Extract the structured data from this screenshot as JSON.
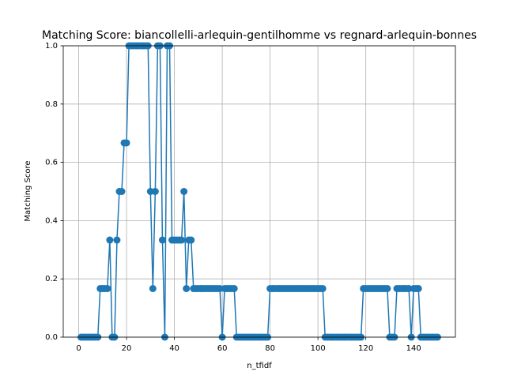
{
  "chart_data": {
    "type": "line",
    "title": "Matching Score: biancollelli-arlequin-gentilhomme vs regnard-arlequin-bonnes",
    "x_label": "n_tfidf",
    "y_label": "Matching Score",
    "x": [
      1,
      2,
      3,
      4,
      5,
      6,
      7,
      8,
      9,
      10,
      11,
      12,
      13,
      14,
      15,
      16,
      17,
      18,
      19,
      20,
      21,
      22,
      23,
      24,
      25,
      26,
      27,
      28,
      29,
      30,
      31,
      32,
      33,
      34,
      35,
      36,
      37,
      38,
      39,
      40,
      41,
      42,
      43,
      44,
      45,
      46,
      47,
      48,
      49,
      50,
      51,
      52,
      53,
      54,
      55,
      56,
      57,
      58,
      59,
      60,
      61,
      62,
      63,
      64,
      65,
      66,
      67,
      68,
      69,
      70,
      71,
      72,
      73,
      74,
      75,
      76,
      77,
      78,
      79,
      80,
      81,
      82,
      83,
      84,
      85,
      86,
      87,
      88,
      89,
      90,
      91,
      92,
      93,
      94,
      95,
      96,
      97,
      98,
      99,
      100,
      101,
      102,
      103,
      104,
      105,
      106,
      107,
      108,
      109,
      110,
      111,
      112,
      113,
      114,
      115,
      116,
      117,
      118,
      119,
      120,
      121,
      122,
      123,
      124,
      125,
      126,
      127,
      128,
      129,
      130,
      131,
      132,
      133,
      134,
      135,
      136,
      137,
      138,
      139,
      140,
      141,
      142,
      143,
      144,
      145,
      146,
      147,
      148,
      149,
      150
    ],
    "series": [
      {
        "color": "#1f77b4",
        "values": [
          0,
          0,
          0,
          0,
          0,
          0,
          0,
          0,
          0.1667,
          0.1667,
          0.1667,
          0.1667,
          0.3333,
          0,
          0,
          0.3333,
          0.5,
          0.5,
          0.6667,
          0.6667,
          1,
          1,
          1,
          1,
          1,
          1,
          1,
          1,
          1,
          0.5,
          0.1667,
          0.5,
          1,
          1,
          0.3333,
          0,
          1,
          1,
          0.3333,
          0.3333,
          0.3333,
          0.3333,
          0.3333,
          0.5,
          0.1667,
          0.3333,
          0.3333,
          0.1667,
          0.1667,
          0.1667,
          0.1667,
          0.1667,
          0.1667,
          0.1667,
          0.1667,
          0.1667,
          0.1667,
          0.1667,
          0.1667,
          0,
          0.1667,
          0.1667,
          0.1667,
          0.1667,
          0.1667,
          0,
          0,
          0,
          0,
          0,
          0,
          0,
          0,
          0,
          0,
          0,
          0,
          0,
          0,
          0.1667,
          0.1667,
          0.1667,
          0.1667,
          0.1667,
          0.1667,
          0.1667,
          0.1667,
          0.1667,
          0.1667,
          0.1667,
          0.1667,
          0.1667,
          0.1667,
          0.1667,
          0.1667,
          0.1667,
          0.1667,
          0.1667,
          0.1667,
          0.1667,
          0.1667,
          0.1667,
          0,
          0,
          0,
          0,
          0,
          0,
          0,
          0,
          0,
          0,
          0,
          0,
          0,
          0,
          0,
          0,
          0.1667,
          0.1667,
          0.1667,
          0.1667,
          0.1667,
          0.1667,
          0.1667,
          0.1667,
          0.1667,
          0.1667,
          0.1667,
          0,
          0,
          0,
          0.1667,
          0.1667,
          0.1667,
          0.1667,
          0.1667,
          0.1667,
          0,
          0.1667,
          0.1667,
          0.1667,
          0,
          0,
          0,
          0,
          0,
          0,
          0,
          0
        ]
      }
    ],
    "xlim": [
      -6.45,
      157.45
    ],
    "xticks": [
      0,
      20,
      40,
      60,
      80,
      100,
      120,
      140
    ],
    "ylim": [
      0,
      1
    ],
    "yticks": [
      {
        "value": 0,
        "label": "0.0"
      },
      0.2,
      0.4,
      0.6,
      0.8,
      {
        "value": 1,
        "label": "1.0"
      }
    ],
    "grid": true
  }
}
